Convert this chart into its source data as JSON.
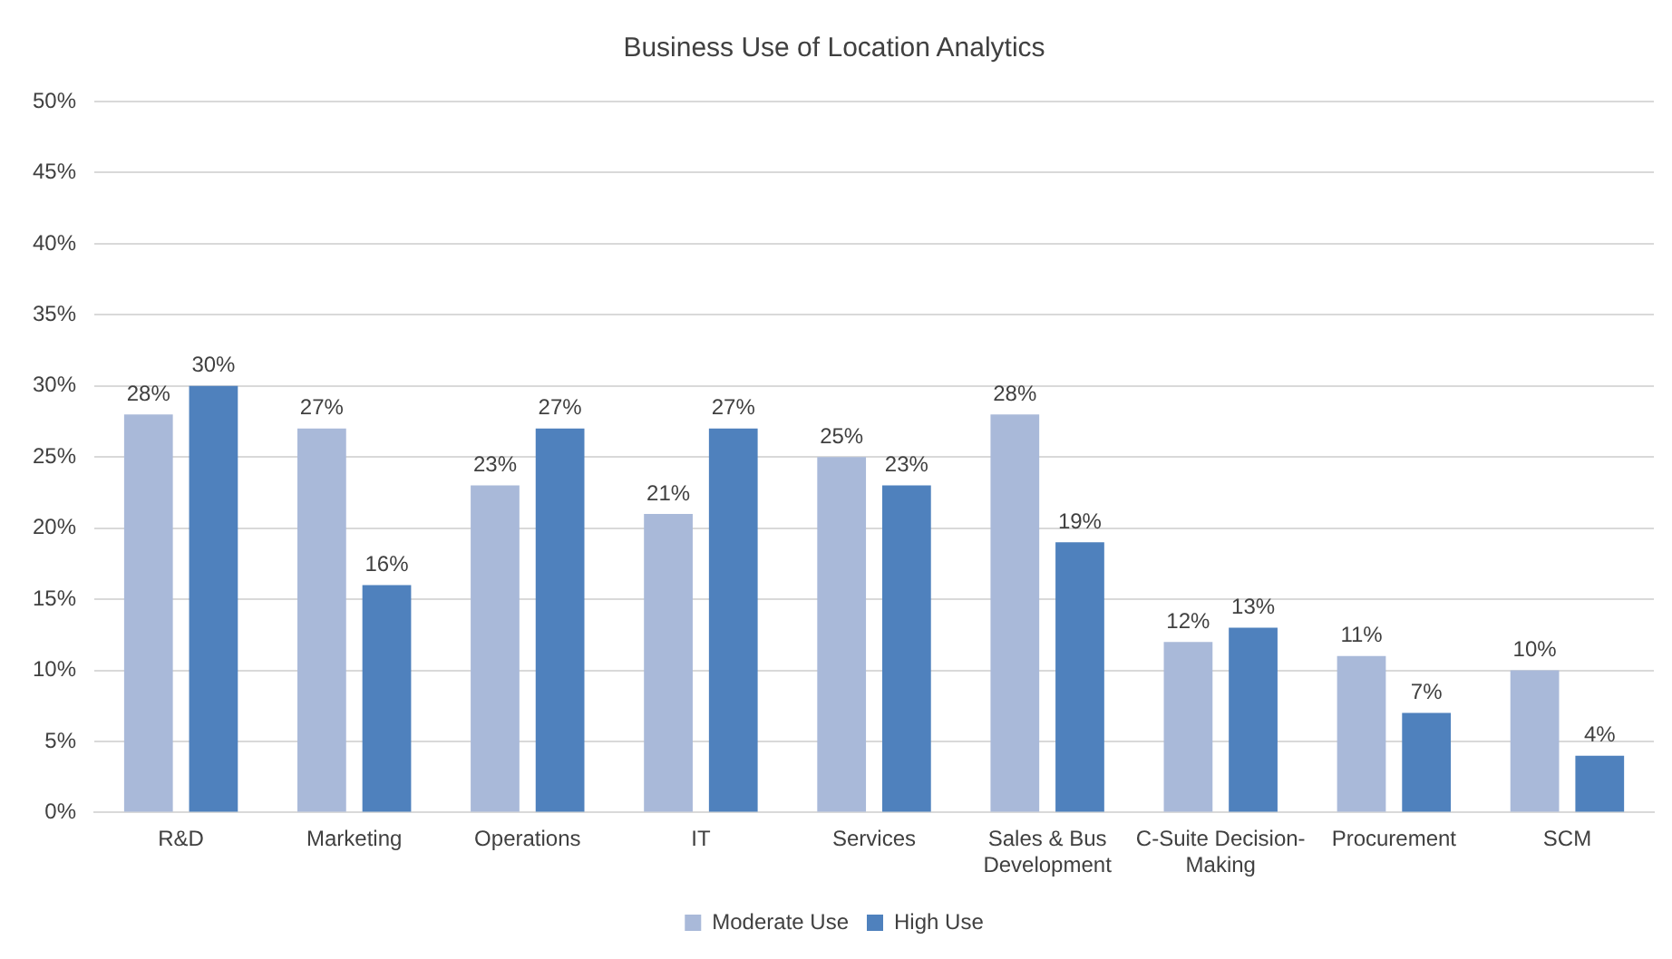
{
  "chart_data": {
    "type": "bar",
    "title": "Business Use of Location Analytics",
    "categories": [
      "R&D",
      "Marketing",
      "Operations",
      "IT",
      "Services",
      "Sales & Bus Development",
      "C-Suite Decision-Making",
      "Procurement",
      "SCM"
    ],
    "series": [
      {
        "name": "Moderate Use",
        "color": "#a9b9d9",
        "values": [
          28,
          27,
          23,
          21,
          25,
          28,
          12,
          11,
          10
        ],
        "value_labels": [
          "28%",
          "27%",
          "23%",
          "21%",
          "25%",
          "28%",
          "12%",
          "11%",
          "10%"
        ]
      },
      {
        "name": "High Use",
        "color": "#4f81bd",
        "values": [
          30,
          16,
          27,
          27,
          23,
          19,
          13,
          7,
          4
        ],
        "value_labels": [
          "30%",
          "16%",
          "27%",
          "27%",
          "23%",
          "19%",
          "13%",
          "7%",
          "4%"
        ]
      }
    ],
    "ylim": [
      0,
      50
    ],
    "yticks": [
      {
        "value": 0,
        "label": "0%"
      },
      {
        "value": 5,
        "label": "5%"
      },
      {
        "value": 10,
        "label": "10%"
      },
      {
        "value": 15,
        "label": "15%"
      },
      {
        "value": 20,
        "label": "20%"
      },
      {
        "value": 25,
        "label": "25%"
      },
      {
        "value": 30,
        "label": "30%"
      },
      {
        "value": 35,
        "label": "35%"
      },
      {
        "value": 40,
        "label": "40%"
      },
      {
        "value": 45,
        "label": "45%"
      },
      {
        "value": 50,
        "label": "50%"
      }
    ],
    "grid": "y",
    "legend": "bottom"
  }
}
